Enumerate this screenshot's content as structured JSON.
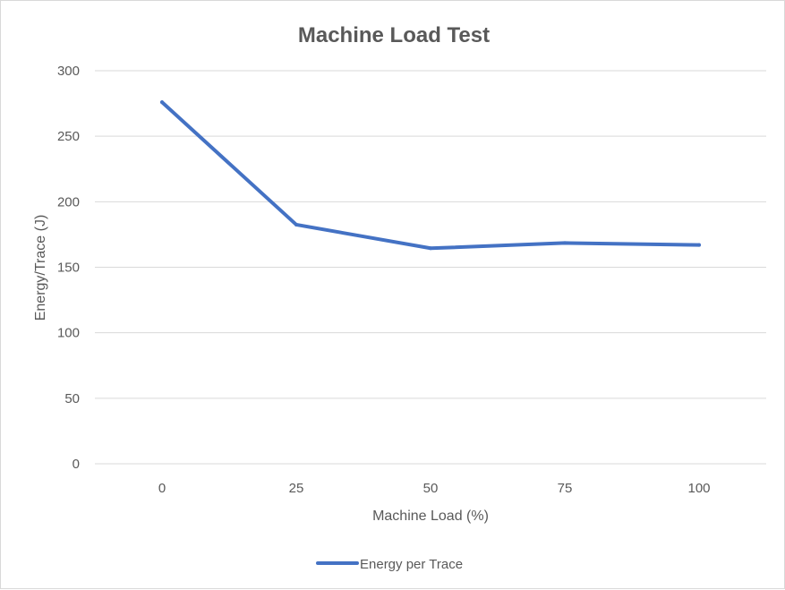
{
  "chart_data": {
    "type": "line",
    "title": "Machine Load Test",
    "xlabel": "Machine Load (%)",
    "ylabel": "Energy/Trace (J)",
    "categories": [
      "0",
      "25",
      "50",
      "75",
      "100"
    ],
    "series": [
      {
        "name": "Energy per Trace",
        "values": [
          276,
          182.5,
          164.5,
          168.5,
          167
        ]
      }
    ],
    "ylim": [
      0,
      300
    ],
    "yticks": [
      0,
      50,
      100,
      150,
      200,
      250,
      300
    ],
    "grid": true,
    "legend": "bottom",
    "line_color": "#4472c4",
    "grid_color": "#d9d9d9"
  }
}
